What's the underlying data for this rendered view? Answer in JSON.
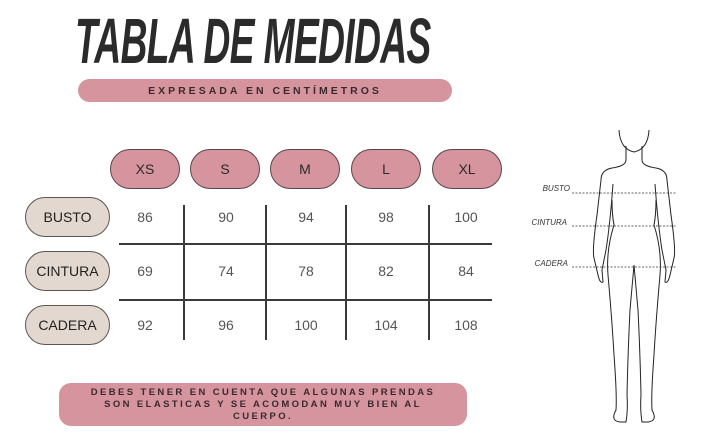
{
  "title": "TABLA DE MEDIDAS",
  "subtitle": "EXPRESADA EN CENTÍMETROS",
  "sizes": [
    "XS",
    "S",
    "M",
    "L",
    "XL"
  ],
  "rows": [
    {
      "label": "BUSTO",
      "values": [
        "86",
        "90",
        "94",
        "98",
        "100"
      ]
    },
    {
      "label": "CINTURA",
      "values": [
        "69",
        "74",
        "78",
        "82",
        "84"
      ]
    },
    {
      "label": "CADERA",
      "values": [
        "92",
        "96",
        "100",
        "104",
        "108"
      ]
    }
  ],
  "note": [
    "DEBES TENER EN CUENTA QUE  ALGUNAS PRENDAS",
    "SON ELASTICAS Y SE ACOMODAN MUY BIEN AL",
    "CUERPO."
  ],
  "figure": {
    "labels": [
      "BUSTO",
      "CINTURA",
      "CADERA"
    ]
  },
  "colors": {
    "pink": "#d6949f",
    "beige": "#e3d8cf",
    "text": "#2b2b2b"
  }
}
